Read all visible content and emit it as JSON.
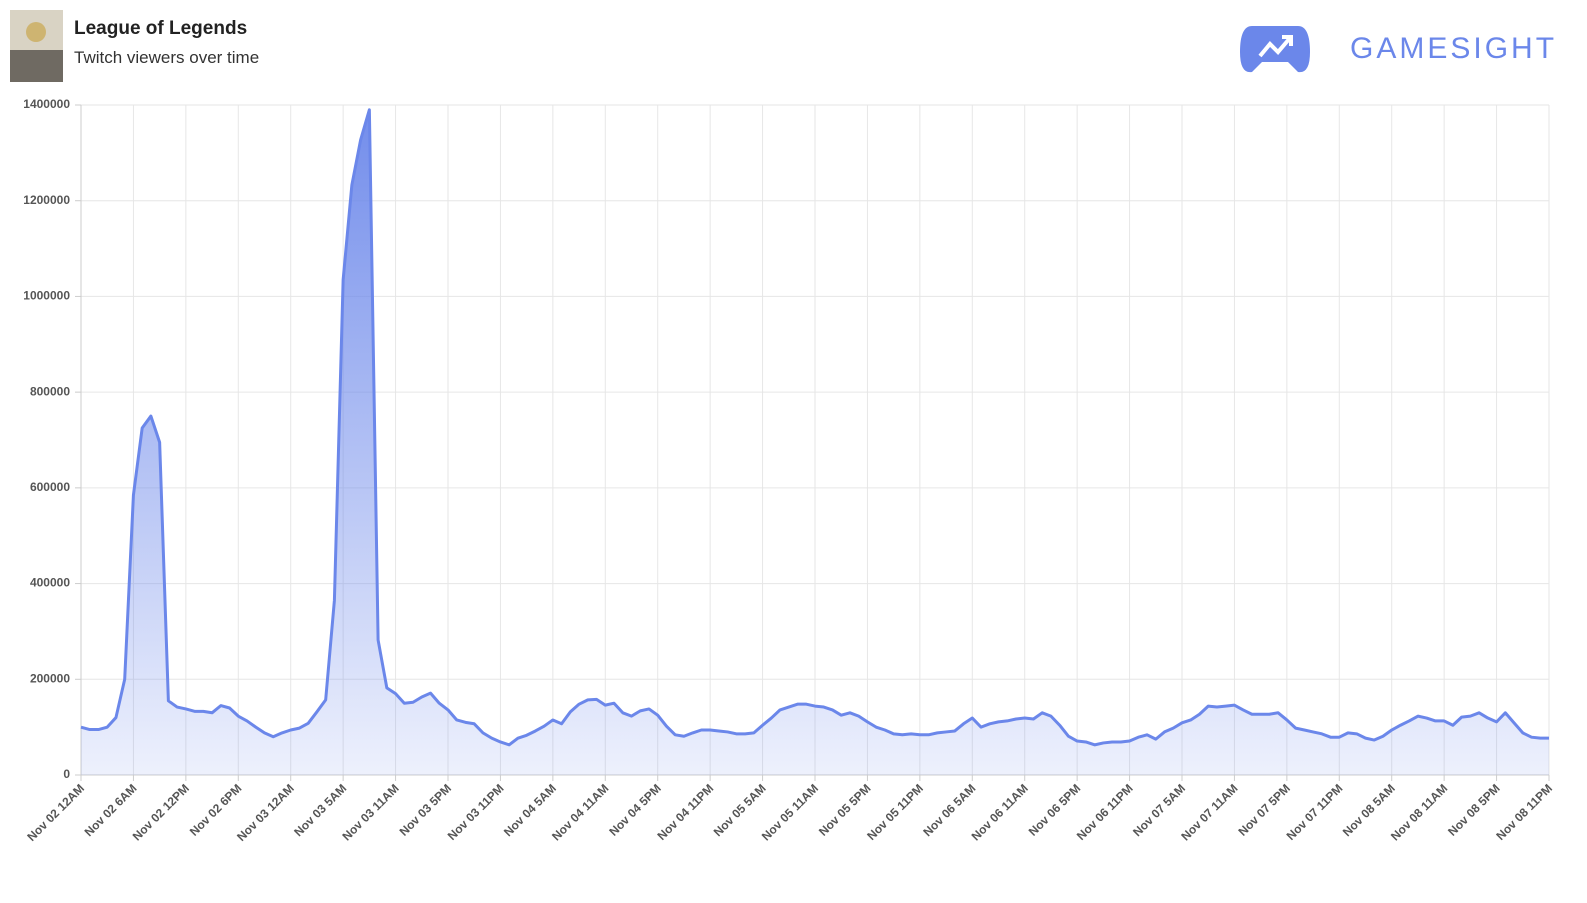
{
  "header": {
    "title": "League of Legends",
    "subtitle": "Twitch viewers over time",
    "brand": "GAMESIGHT"
  },
  "chart_data": {
    "type": "area",
    "color": "#6b87ea",
    "grid": true,
    "ylim": [
      0,
      1400000
    ],
    "yticks": [
      0,
      200000,
      400000,
      600000,
      800000,
      1000000,
      1200000,
      1400000
    ],
    "categories": [
      "Nov 02 12AM",
      null,
      null,
      null,
      null,
      null,
      "Nov 02 6AM",
      null,
      null,
      null,
      null,
      null,
      "Nov 02 12PM",
      null,
      null,
      null,
      null,
      null,
      "Nov 02 6PM",
      null,
      null,
      null,
      null,
      null,
      "Nov 03 12AM",
      null,
      null,
      null,
      null,
      null,
      "Nov 03 5AM",
      null,
      null,
      null,
      null,
      null,
      "Nov 03 11AM",
      null,
      null,
      null,
      null,
      null,
      "Nov 03 5PM",
      null,
      null,
      null,
      null,
      null,
      "Nov 03 11PM",
      null,
      null,
      null,
      null,
      null,
      "Nov 04 5AM",
      null,
      null,
      null,
      null,
      null,
      "Nov 04 11AM",
      null,
      null,
      null,
      null,
      null,
      "Nov 04 5PM",
      null,
      null,
      null,
      null,
      null,
      "Nov 04 11PM",
      null,
      null,
      null,
      null,
      null,
      "Nov 05 5AM",
      null,
      null,
      null,
      null,
      null,
      "Nov 05 11AM",
      null,
      null,
      null,
      null,
      null,
      "Nov 05 5PM",
      null,
      null,
      null,
      null,
      null,
      "Nov 05 11PM",
      null,
      null,
      null,
      null,
      null,
      "Nov 06 5AM",
      null,
      null,
      null,
      null,
      null,
      "Nov 06 11AM",
      null,
      null,
      null,
      null,
      null,
      "Nov 06 5PM",
      null,
      null,
      null,
      null,
      null,
      "Nov 06 11PM",
      null,
      null,
      null,
      null,
      null,
      "Nov 07 5AM",
      null,
      null,
      null,
      null,
      null,
      "Nov 07 11AM",
      null,
      null,
      null,
      null,
      null,
      "Nov 07 5PM",
      null,
      null,
      null,
      null,
      null,
      "Nov 07 11PM",
      null,
      null,
      null,
      null,
      null,
      "Nov 08 5AM",
      null,
      null,
      null,
      null,
      null,
      "Nov 08 11AM",
      null,
      null,
      null,
      null,
      null,
      "Nov 08 5PM",
      null,
      null,
      null,
      null,
      null,
      "Nov 08 11PM"
    ],
    "values": [
      100000,
      95000,
      95000,
      100000,
      120000,
      200000,
      585000,
      725000,
      750000,
      695000,
      155000,
      142000,
      138000,
      133000,
      133000,
      130000,
      145000,
      140000,
      123000,
      113000,
      100000,
      88000,
      80000,
      88000,
      94000,
      98000,
      108000,
      132000,
      157000,
      365000,
      1035000,
      1233000,
      1327000,
      1390000,
      282000,
      182000,
      170000,
      150000,
      152000,
      163000,
      171000,
      150000,
      136000,
      115000,
      110000,
      107000,
      88000,
      77000,
      69000,
      63000,
      77000,
      83000,
      92000,
      102000,
      115000,
      107000,
      132000,
      148000,
      157000,
      158000,
      146000,
      150000,
      130000,
      123000,
      134000,
      138000,
      125000,
      102000,
      84000,
      81000,
      88000,
      94000,
      94000,
      92000,
      90000,
      86000,
      86000,
      88000,
      104000,
      119000,
      136000,
      142000,
      148000,
      148000,
      144000,
      142000,
      136000,
      125000,
      130000,
      123000,
      111000,
      100000,
      94000,
      86000,
      84000,
      86000,
      84000,
      84000,
      88000,
      90000,
      92000,
      107000,
      119000,
      100000,
      107000,
      111000,
      113000,
      117000,
      119000,
      117000,
      130000,
      123000,
      104000,
      81000,
      71000,
      69000,
      63000,
      67000,
      69000,
      69000,
      71000,
      79000,
      84000,
      75000,
      90000,
      98000,
      109000,
      115000,
      127000,
      144000,
      142000,
      144000,
      146000,
      136000,
      127000,
      127000,
      127000,
      130000,
      115000,
      98000,
      94000,
      90000,
      86000,
      79000,
      79000,
      88000,
      86000,
      77000,
      73000,
      81000,
      94000,
      104000,
      113000,
      123000,
      119000,
      113000,
      113000,
      104000,
      121000,
      123000,
      130000,
      119000,
      111000,
      130000,
      109000,
      88000,
      79000,
      77000,
      77000
    ]
  }
}
